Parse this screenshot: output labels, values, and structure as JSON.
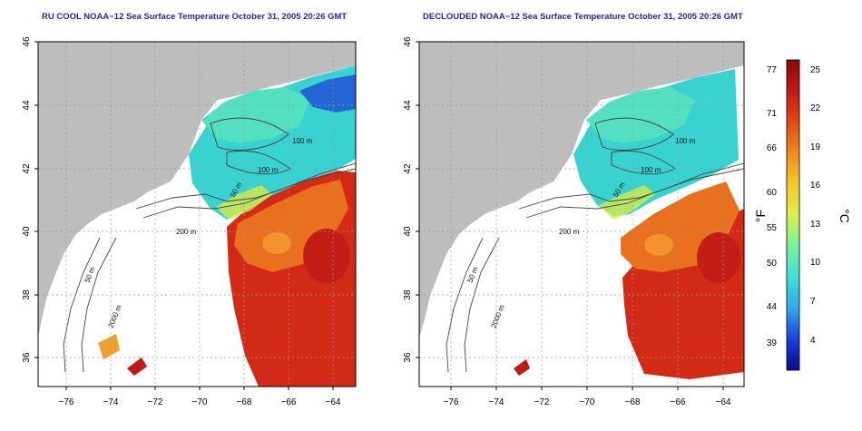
{
  "left_panel": {
    "title": "RU COOL NOAA−12 Sea Surface Temperature October 31, 2005 20:26 GMT"
  },
  "right_panel": {
    "title": "DECLOUDED NOAA−12 Sea Surface Temperature October 31, 2005 20:26 GMT"
  },
  "axes": {
    "lon_ticks": [
      "−76",
      "−74",
      "−72",
      "−70",
      "−68",
      "−66",
      "−64"
    ],
    "lat_ticks": [
      "46",
      "44",
      "42",
      "40",
      "38",
      "36"
    ]
  },
  "contours": {
    "labels_left": [
      "100 m",
      "100 m",
      "50 m",
      "200 m",
      "50 m",
      "2000 m"
    ],
    "labels_right": [
      "100 m",
      "100 m",
      "50 m",
      "200 m",
      "50 m",
      "2000 m"
    ]
  },
  "colorbar": {
    "fahrenheit_ticks": [
      "77",
      "71",
      "66",
      "60",
      "55",
      "50",
      "44",
      "39"
    ],
    "celsius_ticks": [
      "25",
      "22",
      "19",
      "16",
      "13",
      "10",
      "7",
      "4"
    ],
    "fahrenheit_unit": "°F",
    "celsius_unit": "°C",
    "colors": [
      "#0a0a8a",
      "#1c40d8",
      "#2fa9e8",
      "#3de0d8",
      "#7cf0a0",
      "#d8f04a",
      "#f8c830",
      "#f08a20",
      "#e04a18",
      "#c01818",
      "#8a0a0a"
    ]
  },
  "map_colors": {
    "land": "#bdbdbd",
    "shelf_water": "#ffffff",
    "gulf_stream": "#d32a18",
    "warm_core": "#e8701f",
    "shelf_slope": "#38d2d0",
    "gulf_of_maine": "#52e0c0",
    "cold_eddy": "#1f54d6"
  }
}
